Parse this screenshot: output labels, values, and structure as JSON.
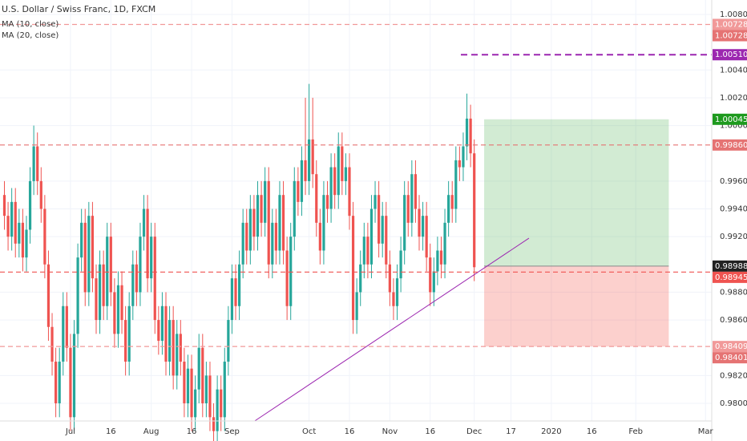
{
  "chart_data": {
    "type": "candlestick",
    "title": "U.S. Dollar / Swiss Franc, 1D, FXCM",
    "legend": [
      "MA (10, close)",
      "MA (20, close)"
    ],
    "up_color": "#26a69a",
    "down_color": "#ef5350",
    "x": [
      -18,
      -17,
      -16,
      -15,
      -14,
      -13,
      -12,
      -11,
      -10,
      -9,
      -8,
      -7,
      -6,
      -5,
      -4,
      -3,
      -2,
      -1,
      0,
      1,
      2,
      3,
      4,
      5,
      6,
      7,
      8,
      9,
      10,
      11,
      12,
      13,
      14,
      15,
      16,
      17,
      18,
      19,
      20,
      21,
      22,
      23,
      24,
      25,
      26,
      27,
      28,
      29,
      30,
      31,
      32,
      33,
      34,
      35,
      36,
      37,
      38,
      39,
      40,
      41,
      42,
      43,
      44,
      45,
      46,
      47,
      48,
      49,
      50,
      51,
      52,
      53,
      54,
      55,
      56,
      57,
      58,
      59,
      60,
      61,
      62,
      63,
      64,
      65,
      66,
      67,
      68,
      69,
      70,
      71,
      72,
      73,
      74,
      75,
      76,
      77,
      78,
      79,
      80,
      81,
      82,
      83,
      84,
      85,
      86,
      87,
      88,
      89,
      90,
      91,
      92,
      93,
      94,
      95,
      96,
      97,
      98,
      99,
      100,
      101,
      102,
      103,
      104,
      105,
      106,
      107,
      108,
      109,
      110
    ],
    "open": [
      0.995,
      0.9935,
      0.992,
      0.9945,
      0.9915,
      0.993,
      0.9905,
      0.9925,
      0.996,
      0.9985,
      0.996,
      0.994,
      0.99,
      0.9855,
      0.983,
      0.98,
      0.983,
      0.987,
      0.984,
      0.979,
      0.985,
      0.9905,
      0.993,
      0.988,
      0.9935,
      0.989,
      0.986,
      0.99,
      0.987,
      0.992,
      0.988,
      0.985,
      0.9885,
      0.986,
      0.983,
      0.987,
      0.99,
      0.988,
      0.992,
      0.994,
      0.989,
      0.992,
      0.986,
      0.9845,
      0.987,
      0.983,
      0.986,
      0.982,
      0.985,
      0.983,
      0.98,
      0.9825,
      0.979,
      0.981,
      0.984,
      0.98,
      0.982,
      0.979,
      0.978,
      0.981,
      0.979,
      0.983,
      0.986,
      0.989,
      0.987,
      0.99,
      0.993,
      0.991,
      0.994,
      0.992,
      0.995,
      0.993,
      0.996,
      0.99,
      0.993,
      0.991,
      0.995,
      0.991,
      0.987,
      0.992,
      0.996,
      0.9945,
      0.9975,
      0.996,
      0.999,
      0.9965,
      0.993,
      0.991,
      0.995,
      0.994,
      0.997,
      0.995,
      0.9985,
      0.996,
      0.997,
      0.9935,
      0.986,
      0.988,
      0.99,
      0.992,
      0.99,
      0.994,
      0.995,
      0.9915,
      0.9935,
      0.99,
      0.988,
      0.987,
      0.989,
      0.991,
      0.995,
      0.993,
      0.9965,
      0.994,
      0.992,
      0.9935,
      0.9905,
      0.988,
      0.9895,
      0.991,
      0.99,
      0.993,
      0.995,
      0.994,
      0.9975,
      0.997,
      0.9985,
      1.0005,
      0.998
    ],
    "high": [
      0.996,
      0.9945,
      0.9955,
      0.9955,
      0.994,
      0.994,
      0.9935,
      0.997,
      1.0,
      0.9995,
      0.997,
      0.995,
      0.991,
      0.9865,
      0.984,
      0.984,
      0.988,
      0.988,
      0.985,
      0.986,
      0.9915,
      0.994,
      0.994,
      0.9945,
      0.9945,
      0.99,
      0.991,
      0.991,
      0.993,
      0.993,
      0.989,
      0.9895,
      0.9895,
      0.987,
      0.988,
      0.991,
      0.991,
      0.993,
      0.995,
      0.995,
      0.993,
      0.993,
      0.987,
      0.988,
      0.988,
      0.987,
      0.987,
      0.986,
      0.986,
      0.984,
      0.9835,
      0.9835,
      0.982,
      0.985,
      0.985,
      0.983,
      0.983,
      0.98,
      0.982,
      0.982,
      0.984,
      0.987,
      0.99,
      0.99,
      0.991,
      0.994,
      0.994,
      0.995,
      0.995,
      0.996,
      0.996,
      0.997,
      0.997,
      0.994,
      0.994,
      0.996,
      0.996,
      0.992,
      0.993,
      0.997,
      0.997,
      0.9985,
      1.002,
      1.003,
      1.002,
      0.9975,
      0.994,
      0.996,
      0.996,
      0.998,
      0.998,
      0.9995,
      0.9995,
      0.998,
      0.998,
      0.9945,
      0.989,
      0.991,
      0.993,
      0.993,
      0.995,
      0.996,
      0.996,
      0.9945,
      0.9945,
      0.991,
      0.989,
      0.99,
      0.992,
      0.996,
      0.996,
      0.9975,
      0.9975,
      0.995,
      0.9945,
      0.9945,
      0.9915,
      0.9905,
      0.992,
      0.992,
      0.994,
      0.996,
      0.996,
      0.9985,
      0.9985,
      0.9995,
      1.0023,
      1.0015,
      0.999
    ],
    "low": [
      0.9925,
      0.991,
      0.991,
      0.9905,
      0.9905,
      0.9895,
      0.9895,
      0.9915,
      0.995,
      0.995,
      0.993,
      0.989,
      0.9845,
      0.982,
      0.979,
      0.979,
      0.982,
      0.983,
      0.978,
      0.978,
      0.984,
      0.9895,
      0.987,
      0.987,
      0.988,
      0.985,
      0.985,
      0.986,
      0.986,
      0.987,
      0.984,
      0.984,
      0.985,
      0.982,
      0.982,
      0.986,
      0.987,
      0.987,
      0.991,
      0.988,
      0.988,
      0.985,
      0.9835,
      0.9835,
      0.982,
      0.982,
      0.981,
      0.981,
      0.982,
      0.979,
      0.979,
      0.978,
      0.978,
      0.98,
      0.979,
      0.979,
      0.978,
      0.977,
      0.977,
      0.978,
      0.978,
      0.982,
      0.985,
      0.986,
      0.986,
      0.989,
      0.99,
      0.99,
      0.991,
      0.991,
      0.992,
      0.992,
      0.989,
      0.989,
      0.99,
      0.99,
      0.99,
      0.986,
      0.986,
      0.991,
      0.9935,
      0.9935,
      0.995,
      0.995,
      0.9955,
      0.992,
      0.99,
      0.99,
      0.993,
      0.993,
      0.994,
      0.994,
      0.995,
      0.995,
      0.9925,
      0.985,
      0.985,
      0.987,
      0.989,
      0.989,
      0.989,
      0.993,
      0.9905,
      0.9905,
      0.989,
      0.987,
      0.986,
      0.986,
      0.988,
      0.99,
      0.992,
      0.992,
      0.993,
      0.991,
      0.991,
      0.9895,
      0.987,
      0.987,
      0.9885,
      0.989,
      0.989,
      0.992,
      0.993,
      0.993,
      0.996,
      0.996,
      0.9975,
      0.997,
      0.9888
    ],
    "close": [
      0.9935,
      0.992,
      0.9945,
      0.9915,
      0.993,
      0.9905,
      0.9925,
      0.996,
      0.9985,
      0.996,
      0.994,
      0.99,
      0.9855,
      0.983,
      0.98,
      0.983,
      0.987,
      0.984,
      0.979,
      0.985,
      0.9905,
      0.993,
      0.988,
      0.9935,
      0.989,
      0.986,
      0.99,
      0.987,
      0.992,
      0.988,
      0.985,
      0.9885,
      0.986,
      0.983,
      0.987,
      0.99,
      0.988,
      0.992,
      0.994,
      0.989,
      0.992,
      0.986,
      0.9845,
      0.987,
      0.983,
      0.986,
      0.982,
      0.985,
      0.983,
      0.98,
      0.9825,
      0.979,
      0.981,
      0.984,
      0.98,
      0.982,
      0.979,
      0.978,
      0.981,
      0.979,
      0.983,
      0.986,
      0.989,
      0.987,
      0.99,
      0.993,
      0.991,
      0.994,
      0.992,
      0.995,
      0.993,
      0.996,
      0.99,
      0.993,
      0.991,
      0.995,
      0.991,
      0.987,
      0.992,
      0.996,
      0.9945,
      0.9975,
      0.996,
      0.999,
      0.9965,
      0.993,
      0.991,
      0.995,
      0.994,
      0.997,
      0.995,
      0.9985,
      0.996,
      0.997,
      0.9935,
      0.986,
      0.988,
      0.99,
      0.992,
      0.99,
      0.994,
      0.995,
      0.9915,
      0.9935,
      0.99,
      0.988,
      0.987,
      0.989,
      0.991,
      0.995,
      0.993,
      0.9965,
      0.994,
      0.992,
      0.9935,
      0.9905,
      0.988,
      0.9895,
      0.991,
      0.99,
      0.993,
      0.995,
      0.994,
      0.9975,
      0.997,
      0.9985,
      1.0005,
      0.998,
      0.9898
    ],
    "xlim": [
      -19.2,
      174.7
    ],
    "xticks": [
      {
        "value": 0,
        "label": "Jul"
      },
      {
        "value": 11,
        "label": "16"
      },
      {
        "value": 22,
        "label": "Aug"
      },
      {
        "value": 33,
        "label": "16"
      },
      {
        "value": 44,
        "label": "Sep"
      },
      {
        "value": 65,
        "label": "Oct"
      },
      {
        "value": 76,
        "label": "16"
      },
      {
        "value": 87,
        "label": "Nov"
      },
      {
        "value": 98,
        "label": "16"
      },
      {
        "value": 110,
        "label": "Dec"
      },
      {
        "value": 120,
        "label": "17"
      },
      {
        "value": 131,
        "label": "2020"
      },
      {
        "value": 142,
        "label": "16"
      },
      {
        "value": 154,
        "label": "Feb"
      },
      {
        "value": 173,
        "label": "Mar"
      }
    ],
    "ylim": [
      0.97873,
      1.00904
    ],
    "yticks": [
      {
        "value": 1.008,
        "label": "1.00800"
      },
      {
        "value": 1.004,
        "label": "1.00400"
      },
      {
        "value": 1.002,
        "label": "1.00200"
      },
      {
        "value": 1.0,
        "label": "1.00000"
      },
      {
        "value": 0.996,
        "label": "0.99600"
      },
      {
        "value": 0.994,
        "label": "0.99400"
      },
      {
        "value": 0.992,
        "label": "0.99200"
      },
      {
        "value": 0.988,
        "label": "0.98800"
      },
      {
        "value": 0.986,
        "label": "0.98600"
      },
      {
        "value": 0.982,
        "label": "0.98200"
      },
      {
        "value": 0.98,
        "label": "0.98000"
      }
    ],
    "grid": true,
    "levels": [
      {
        "value": 1.00728,
        "color": "#f19999",
        "line": true
      },
      {
        "value": 1.00728,
        "color": "#e57373",
        "line": false
      },
      {
        "value": {
          "value": 1.0051,
          "label": "1.00510"
        },
        "color": "#9c27b0",
        "line": true
      },
      {
        "value": 1.00045,
        "color": "#1e9a1e",
        "line": false
      },
      {
        "value": {
          "value": 0.9986,
          "label": "0.99860"
        },
        "color": "#e57373",
        "line": true
      },
      {
        "value": 0.98988,
        "color": "#222222",
        "line": false
      },
      {
        "value": 0.98945,
        "color": "#ef5350",
        "line": true
      },
      {
        "value": 0.98409,
        "color": "#f19999",
        "line": true
      },
      {
        "value": 0.98401,
        "color": "#e57373",
        "line": false
      }
    ],
    "position": {
      "entry": 0.98988,
      "target": 1.00045,
      "stop": 0.98409,
      "x": [
        112.7,
        163
      ]
    },
    "trendline": {
      "x": [
        50.2,
        124.9
      ],
      "y": [
        0.97873,
        0.99189
      ],
      "color": "#9c27b0"
    }
  }
}
